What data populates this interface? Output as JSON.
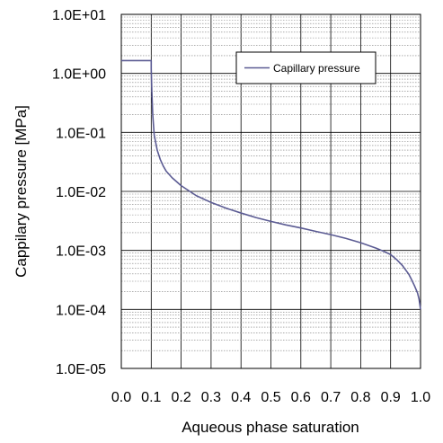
{
  "chart_data": {
    "type": "line",
    "xlabel": "Aqueous phase saturation",
    "ylabel": "Cappilary pressure [MPa]",
    "xlim": [
      0.0,
      1.0
    ],
    "ylim": [
      1e-05,
      10
    ],
    "y_scale": "log",
    "grid": "on",
    "legend_position": "top-right",
    "x_ticks": [
      "0.0",
      "0.1",
      "0.2",
      "0.3",
      "0.4",
      "0.5",
      "0.6",
      "0.7",
      "0.8",
      "0.9",
      "1.0"
    ],
    "y_ticks": [
      "1.0E-05",
      "1.0E-04",
      "1.0E-03",
      "1.0E-02",
      "1.0E-01",
      "1.0E+00",
      "1.0E+01"
    ],
    "series": [
      {
        "name": "Capillary pressure",
        "color": "#5b5b93",
        "x": [
          0.0,
          0.1,
          0.1,
          0.102,
          0.105,
          0.11,
          0.12,
          0.13,
          0.14,
          0.15,
          0.17,
          0.2,
          0.25,
          0.3,
          0.35,
          0.4,
          0.45,
          0.5,
          0.55,
          0.6,
          0.65,
          0.7,
          0.75,
          0.8,
          0.85,
          0.88,
          0.9,
          0.92,
          0.94,
          0.96,
          0.97,
          0.98,
          0.99,
          0.995,
          1.0
        ],
        "y": [
          1.65,
          1.65,
          1.2,
          0.5,
          0.2,
          0.09,
          0.05,
          0.035,
          0.027,
          0.022,
          0.017,
          0.0125,
          0.0085,
          0.0065,
          0.0052,
          0.0043,
          0.0036,
          0.0031,
          0.0027,
          0.0024,
          0.0021,
          0.00185,
          0.0016,
          0.00135,
          0.0011,
          0.00095,
          0.00085,
          0.0007,
          0.00055,
          0.0004,
          0.00032,
          0.00025,
          0.00019,
          0.00015,
          0.0001
        ]
      }
    ]
  }
}
